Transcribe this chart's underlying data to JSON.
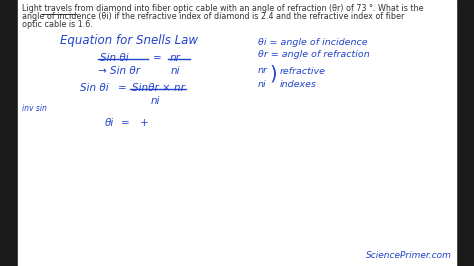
{
  "bg_color": "#ffffff",
  "outer_bg": "#1a1a1a",
  "border_color": "#d4b800",
  "text_color": "#2244cc",
  "black_color": "#333333",
  "watermark": "SciencePrimer.com",
  "top_text_line1": "Light travels from diamond into fiber optic cable with an angle of refraction (θr) of 73 °. What is the",
  "top_text_line2": "angle of incidence (θi) if the refractive index of diamond is 2.4 and the refractive index of fiber",
  "top_text_line3": "optic cable is 1.6.",
  "title": "Equation for Snells Law",
  "eq1_num": "Sin θi",
  "eq1_den": "→ Sin θr",
  "eq1_rhs_num": "nr",
  "eq1_rhs_den": "ni",
  "eq1_sep": "=",
  "eq2_lhs": "Sin θi",
  "eq2_eq": "=",
  "eq2_num": "Sinθr × nr",
  "eq2_den": "ni",
  "inv_sin_label": "inv sin",
  "eq3_lhs": "θi",
  "eq3_eq": "=",
  "eq3_plus": "+",
  "right_line1": "θi = angle of incidence",
  "right_line2": "θr = angle of refraction",
  "right_line3": "nr",
  "right_line3b": "refractive",
  "right_line4": "ni",
  "right_line4b": "indexes",
  "right_brace": ")"
}
